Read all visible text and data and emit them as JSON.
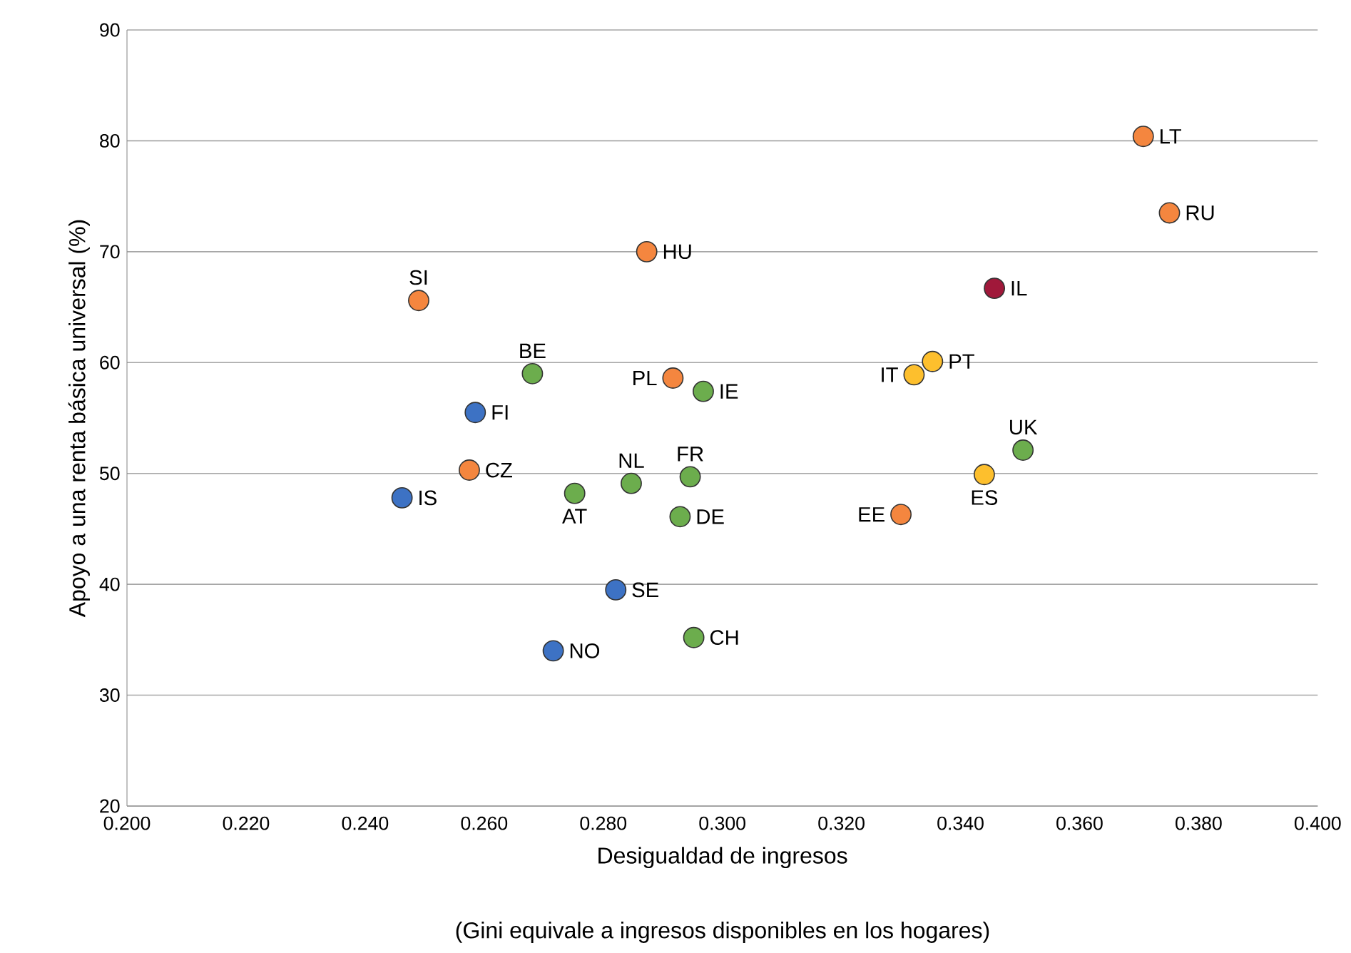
{
  "chart_data": {
    "type": "scatter",
    "xlabel": "Desigualdad de ingresos",
    "ylabel": "Apoyo a una renta básica universal (%)",
    "xlim": [
      0.2,
      0.4
    ],
    "xticks": [
      {
        "value": 0.2,
        "label": "0.200"
      },
      {
        "value": 0.22,
        "label": "0.220"
      },
      {
        "value": 0.24,
        "label": "0.240"
      },
      {
        "value": 0.26,
        "label": "0.260"
      },
      {
        "value": 0.28,
        "label": "0.280"
      },
      {
        "value": 0.3,
        "label": "0.300"
      },
      {
        "value": 0.32,
        "label": "0.320"
      },
      {
        "value": 0.34,
        "label": "0.340"
      },
      {
        "value": 0.36,
        "label": "0.360"
      },
      {
        "value": 0.38,
        "label": "0.380"
      },
      {
        "value": 0.4,
        "label": "0.400"
      }
    ],
    "ylim": [
      20,
      90
    ],
    "yticks": [
      20,
      30,
      40,
      50,
      60,
      70,
      80,
      90
    ],
    "grid": "y",
    "marker": "circle",
    "series": [
      {
        "color": "#f4863f",
        "x": [
          0.249,
          0.2873,
          0.2917,
          0.2575,
          0.3707,
          0.3751,
          0.33
        ],
        "values": [
          65.6,
          70.0,
          58.6,
          50.3,
          80.4,
          73.5,
          46.3
        ]
      },
      {
        "color": "#3d72c4",
        "x": [
          0.2585,
          0.2462,
          0.2821,
          0.2716
        ],
        "values": [
          55.5,
          47.8,
          39.5,
          34.0
        ]
      },
      {
        "color": "#6cad4d",
        "x": [
          0.2681,
          0.2968,
          0.2847,
          0.2946,
          0.2752,
          0.2929,
          0.2952,
          0.3505
        ],
        "values": [
          59.0,
          57.4,
          49.1,
          49.7,
          48.2,
          46.1,
          35.2,
          52.1
        ]
      },
      {
        "color": "#fdbf2d",
        "x": [
          0.3322,
          0.3353,
          0.344
        ],
        "values": [
          58.9,
          60.1,
          49.9
        ]
      },
      {
        "color": "#a0183a",
        "x": [
          0.3457
        ],
        "values": [
          66.7
        ]
      }
    ],
    "annotations": [
      {
        "text": "SI",
        "x": 0.249,
        "y": 65.6
      },
      {
        "text": "HU",
        "x": 0.2873,
        "y": 70.0
      },
      {
        "text": "PL",
        "x": 0.2917,
        "y": 58.6
      },
      {
        "text": "CZ",
        "x": 0.2575,
        "y": 50.3
      },
      {
        "text": "LT",
        "x": 0.3707,
        "y": 80.4
      },
      {
        "text": "RU",
        "x": 0.3751,
        "y": 73.5
      },
      {
        "text": "EE",
        "x": 0.33,
        "y": 46.3
      },
      {
        "text": "FI",
        "x": 0.2585,
        "y": 55.5
      },
      {
        "text": "IS",
        "x": 0.2462,
        "y": 47.8
      },
      {
        "text": "SE",
        "x": 0.2821,
        "y": 39.5
      },
      {
        "text": "NO",
        "x": 0.2716,
        "y": 34.0
      },
      {
        "text": "BE",
        "x": 0.2681,
        "y": 59.0
      },
      {
        "text": "IE",
        "x": 0.2968,
        "y": 57.4
      },
      {
        "text": "NL",
        "x": 0.2847,
        "y": 49.1
      },
      {
        "text": "FR",
        "x": 0.2946,
        "y": 49.7
      },
      {
        "text": "AT",
        "x": 0.2752,
        "y": 48.2
      },
      {
        "text": "DE",
        "x": 0.2929,
        "y": 46.1
      },
      {
        "text": "CH",
        "x": 0.2952,
        "y": 35.2
      },
      {
        "text": "UK",
        "x": 0.3505,
        "y": 52.1
      },
      {
        "text": "IT",
        "x": 0.3322,
        "y": 58.9
      },
      {
        "text": "PT",
        "x": 0.3353,
        "y": 60.1
      },
      {
        "text": "ES",
        "x": 0.344,
        "y": 49.9
      },
      {
        "text": "IL",
        "x": 0.3457,
        "y": 66.7
      },
      "(Gini equivale a ingresos disponibles en los hogares)"
    ]
  }
}
